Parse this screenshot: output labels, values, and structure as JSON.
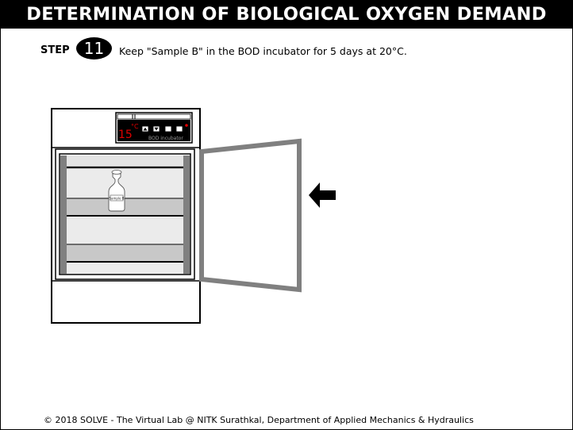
{
  "header": {
    "title": "DETERMINATION OF BIOLOGICAL OXYGEN DEMAND"
  },
  "step": {
    "label": "STEP",
    "number": "11",
    "instruction": "Keep \"Sample B\" in the BOD incubator for 5 days at 20°C."
  },
  "incubator": {
    "temperature": "15",
    "unit": "°C",
    "panel_label": "BOD incubator",
    "bottle_label": "Sample B"
  },
  "colors": {
    "temp_red": "#e00000",
    "door_gray": "#808080",
    "shelf_gray": "#c8c8c8"
  },
  "footer": {
    "text": "© 2018 SOLVE - The Virtual Lab @ NITK Surathkal, Department of Applied Mechanics & Hydraulics"
  }
}
